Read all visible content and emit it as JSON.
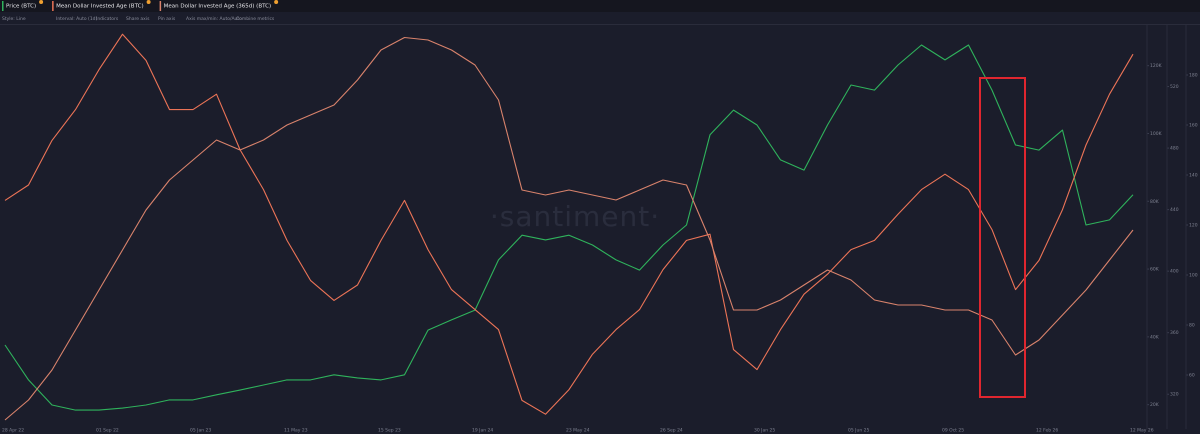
{
  "chart_data": {
    "type": "line",
    "legend": [
      "Price (BTC)",
      "Mean Dollar Invested Age (BTC)",
      "Mean Dollar Invested Age (365d) (BTC)"
    ],
    "toolbar": [
      "Style: Line",
      "Interval: Auto (1d)",
      "Indicators",
      "Share axis",
      "Pin axis",
      "Axis max/min: Auto/Auto",
      "Combine metrics"
    ],
    "watermark": "·santiment·",
    "categories": [
      "28 Apr 22",
      null,
      null,
      null,
      "01 Sep 22",
      null,
      null,
      null,
      "05 Jan 23",
      null,
      null,
      null,
      "11 May 23",
      null,
      null,
      null,
      "15 Sep 23",
      null,
      null,
      null,
      "19 Jan 24",
      null,
      null,
      null,
      "23 May 24",
      null,
      null,
      null,
      "26 Sep 24",
      null,
      null,
      null,
      "30 Jan 25",
      null,
      null,
      null,
      "05 Jun 25",
      null,
      null,
      null,
      "09 Oct 25",
      null,
      null,
      null,
      "12 Feb 26",
      null,
      null,
      null,
      "12 May 26"
    ],
    "ylim": [
      14000,
      132000
    ],
    "yticks": [
      {
        "value": 20000,
        "label": "20K"
      },
      {
        "value": 40000,
        "label": "40K"
      },
      {
        "value": 60000,
        "label": "60K"
      },
      {
        "value": 80000,
        "label": "80K"
      },
      {
        "value": 100000,
        "label": "100K"
      },
      {
        "value": 120000,
        "label": "120K"
      }
    ],
    "y2lim": [
      300,
      560
    ],
    "y2ticks": [
      320,
      360,
      400,
      440,
      480,
      520
    ],
    "y3lim": [
      40,
      200
    ],
    "y3ticks": [
      60,
      80,
      100,
      120,
      140,
      160,
      180
    ],
    "series": [
      {
        "name": "Price (BTC)",
        "color": "#2fb35c",
        "axis": "y",
        "values": [
          37600,
          27300,
          19900,
          18400,
          18400,
          19000,
          19900,
          21400,
          21400,
          22900,
          24300,
          25800,
          27300,
          27300,
          28800,
          27900,
          27300,
          28800,
          42000,
          45000,
          47900,
          62700,
          70000,
          68600,
          70000,
          67100,
          62700,
          59700,
          67100,
          73000,
          99600,
          106900,
          102500,
          92200,
          89200,
          102500,
          114300,
          112800,
          120200,
          126100,
          121700,
          126100,
          112800,
          96600,
          95100,
          101000,
          73000,
          74500,
          81900
        ]
      },
      {
        "name": "Mean Dollar Invested Age (BTC)",
        "color": "#ec7457",
        "axis": "y2",
        "values": [
          446,
          456,
          485,
          505,
          531,
          554,
          537,
          505,
          505,
          515,
          479,
          453,
          420,
          394,
          381,
          391,
          420,
          446,
          414,
          388,
          375,
          362,
          316,
          307,
          323,
          346,
          362,
          375,
          401,
          420,
          424,
          349,
          336,
          362,
          385,
          398,
          414,
          420,
          437,
          453,
          463,
          453,
          427,
          388,
          407,
          440,
          482,
          515,
          541
        ]
      },
      {
        "name": "Mean Dollar Invested Age (365d) (BTC)",
        "color": "#d9836c",
        "axis": "y3",
        "values": [
          42,
          50,
          62,
          78,
          94,
          110,
          126,
          138,
          146,
          154,
          150,
          154,
          160,
          164,
          168,
          178,
          190,
          195,
          194,
          190,
          184,
          170,
          134,
          132,
          134,
          132,
          130,
          134,
          138,
          136,
          114,
          86,
          86,
          90,
          96,
          102,
          98,
          90,
          88,
          88,
          86,
          86,
          82,
          68,
          74,
          84,
          94,
          106,
          118
        ]
      }
    ]
  }
}
